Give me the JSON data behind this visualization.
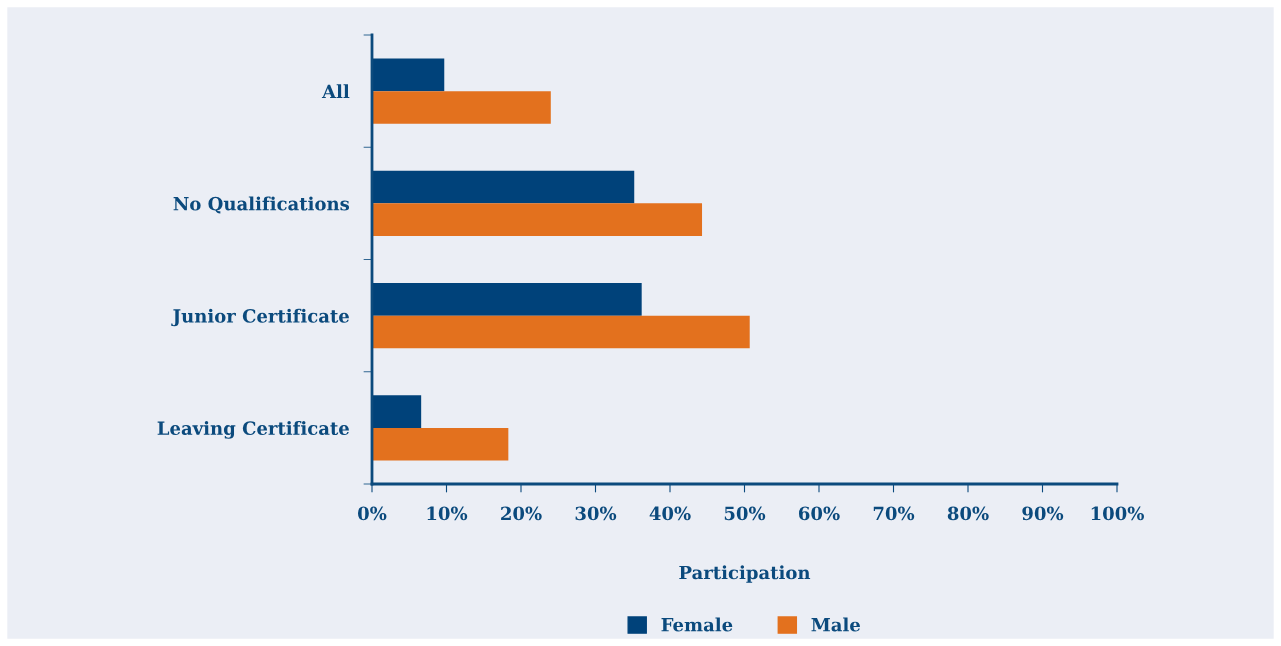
{
  "chart_data": {
    "type": "bar",
    "orientation": "horizontal",
    "xlabel": "Participation",
    "categories": [
      "All",
      "No Qualifications",
      "Junior Certificate",
      "Leaving Certificate"
    ],
    "series": [
      {
        "name": "Female",
        "color": "#00427a",
        "values": [
          9.7,
          35.2,
          36.2,
          6.6
        ]
      },
      {
        "name": "Male",
        "color": "#e3711e",
        "values": [
          24.0,
          44.3,
          50.7,
          18.3
        ]
      }
    ],
    "xlim": [
      0,
      100
    ],
    "xticks": [
      {
        "value": 0,
        "label": "0%"
      },
      {
        "value": 10,
        "label": "10%"
      },
      {
        "value": 20,
        "label": "20%"
      },
      {
        "value": 30,
        "label": "30%"
      },
      {
        "value": 40,
        "label": "40%"
      },
      {
        "value": 50,
        "label": "50%"
      },
      {
        "value": 60,
        "label": "60%"
      },
      {
        "value": 70,
        "label": "70%"
      },
      {
        "value": 80,
        "label": "80%"
      },
      {
        "value": 90,
        "label": "90%"
      },
      {
        "value": 100,
        "label": "100%"
      }
    ],
    "grid": false,
    "legend": "bottom"
  }
}
